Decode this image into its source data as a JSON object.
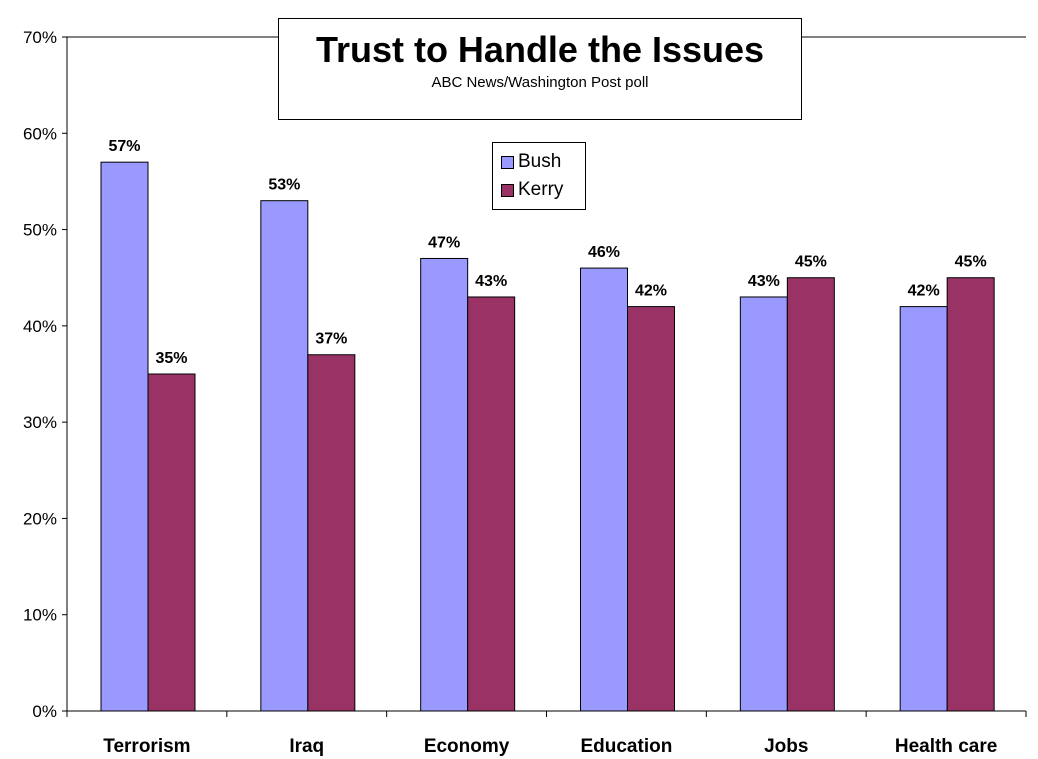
{
  "chart_data": {
    "type": "bar",
    "title": "Trust to Handle the Issues",
    "subtitle": "ABC News/Washington Post poll",
    "categories": [
      "Terrorism",
      "Iraq",
      "Economy",
      "Education",
      "Jobs",
      "Health care"
    ],
    "series": [
      {
        "name": "Bush",
        "values": [
          57,
          53,
          47,
          46,
          43,
          42
        ],
        "color": "#9999ff"
      },
      {
        "name": "Kerry",
        "values": [
          35,
          37,
          43,
          42,
          45,
          45
        ],
        "color": "#993366"
      }
    ],
    "ylim": [
      0,
      70
    ],
    "yticks": [
      0,
      10,
      20,
      30,
      40,
      50,
      60,
      70
    ],
    "ytick_labels": [
      "0%",
      "10%",
      "20%",
      "30%",
      "40%",
      "50%",
      "60%",
      "70%"
    ],
    "data_labels": [
      [
        "57%",
        "53%",
        "47%",
        "46%",
        "43%",
        "42%"
      ],
      [
        "35%",
        "37%",
        "43%",
        "42%",
        "45%",
        "45%"
      ]
    ],
    "grid": false,
    "legend_position": "top-center"
  }
}
